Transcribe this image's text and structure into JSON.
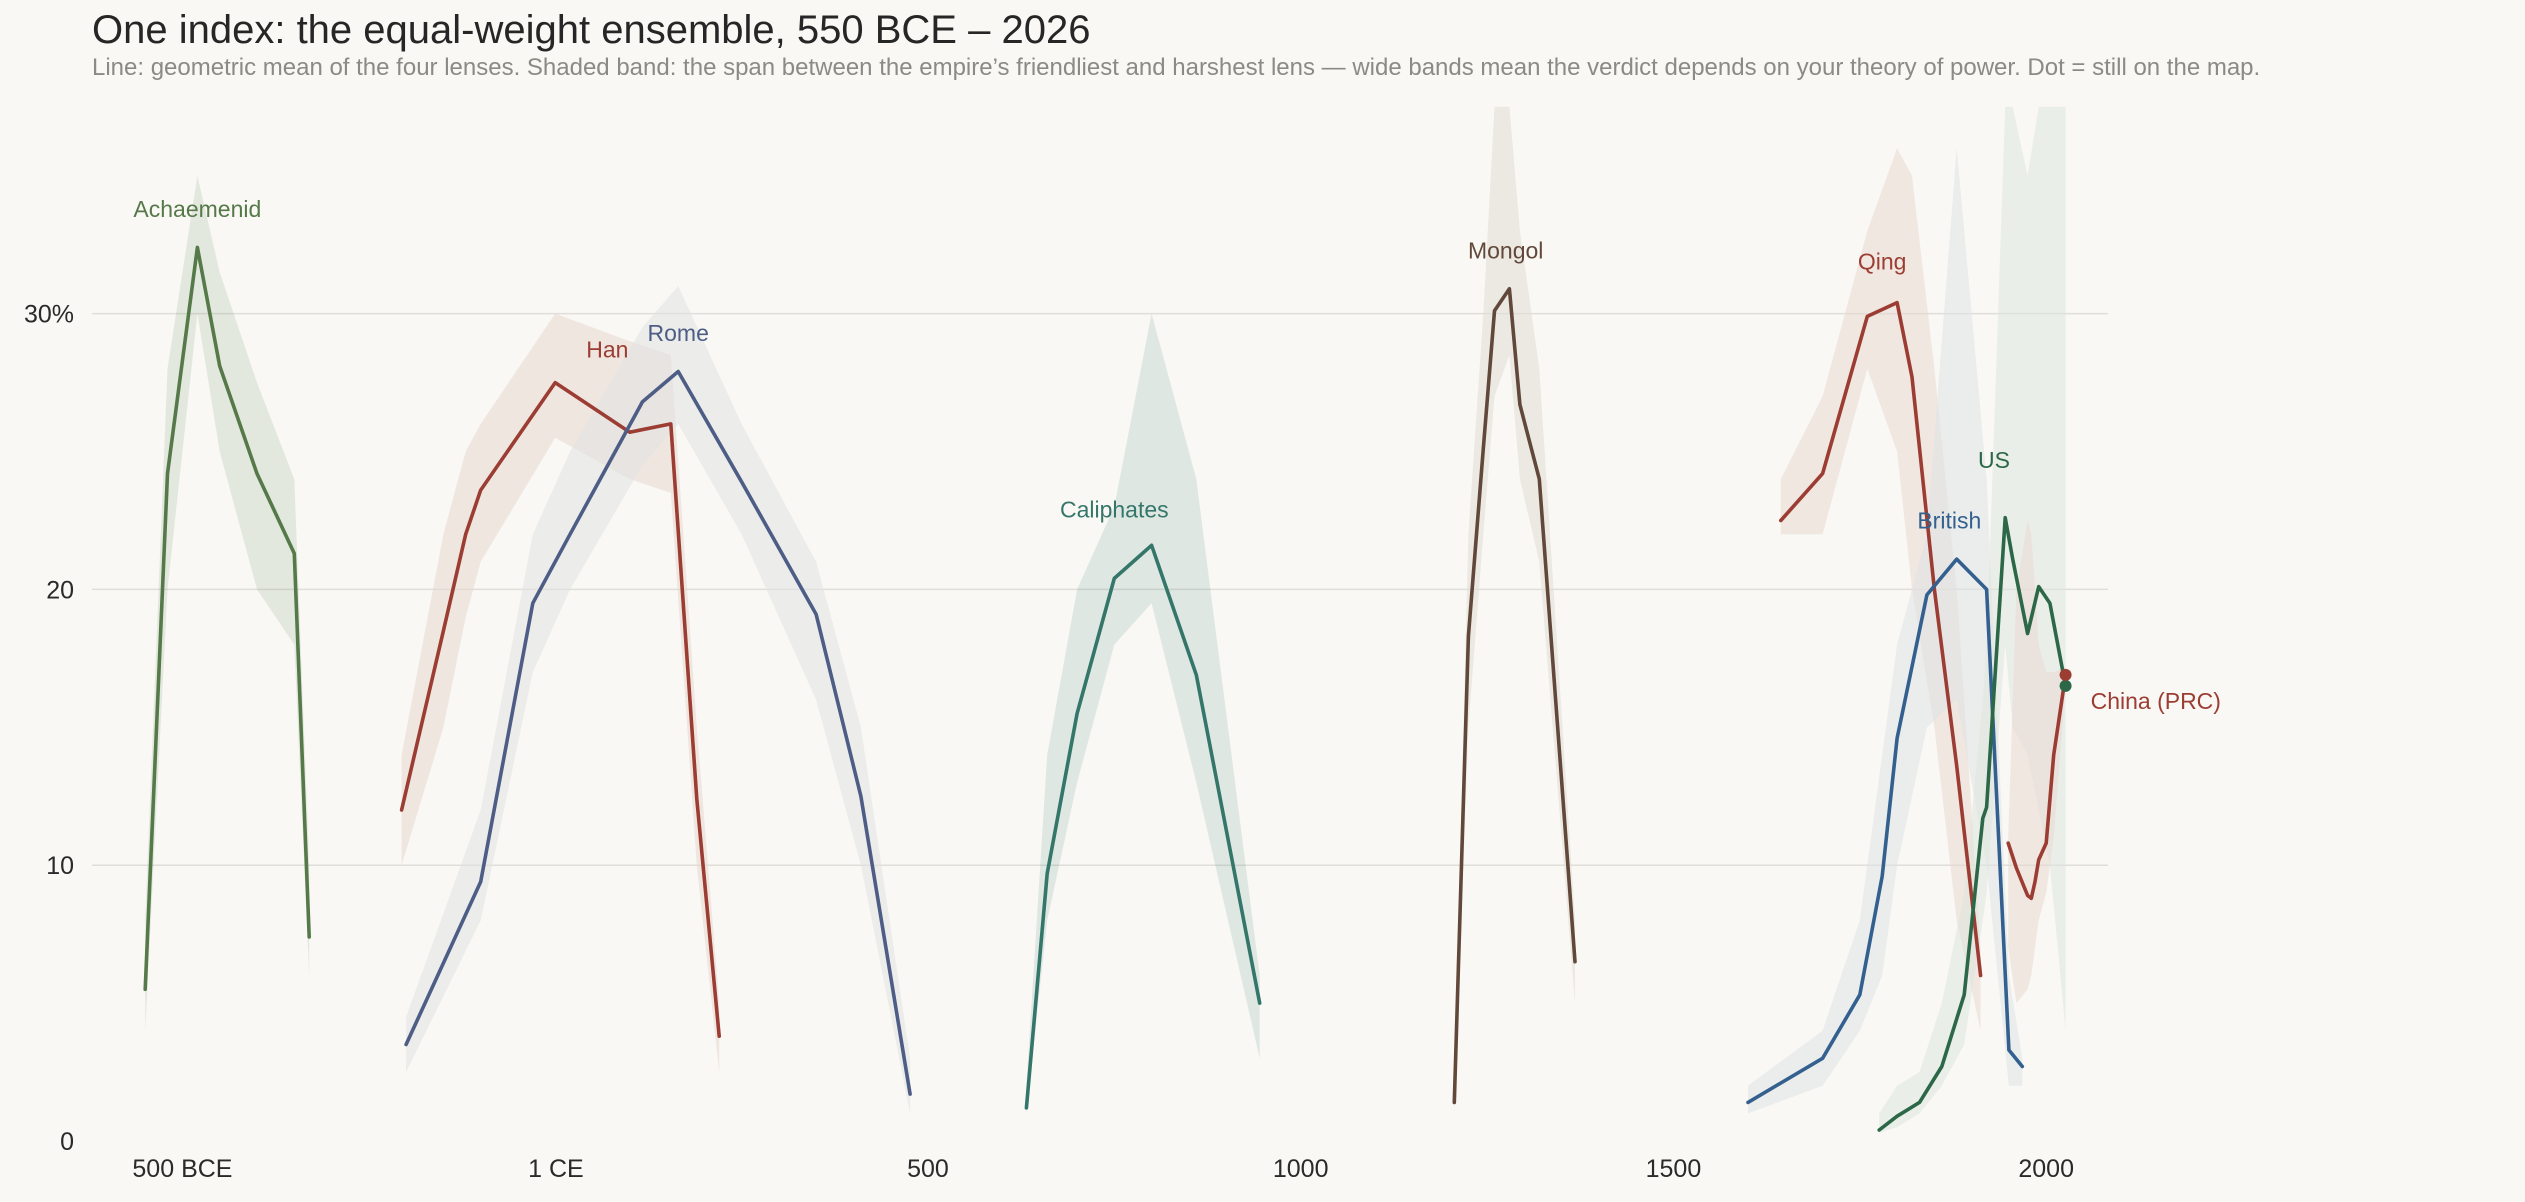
{
  "chart_data": {
    "type": "line",
    "title": "One index: the equal-weight ensemble, 550 BCE – 2026",
    "subtitle": "Line: geometric mean of the four lenses. Shaded band: the span between the empire’s friendliest and harshest lens — wide bands mean the verdict depends on your theory of power. Dot = still on the map.",
    "xlim": [
      -600,
      2070
    ],
    "ylim": [
      0,
      37
    ],
    "x_ticks": [
      {
        "value": -500,
        "label": "500 BCE"
      },
      {
        "value": 1,
        "label": "1 CE"
      },
      {
        "value": 500,
        "label": "500"
      },
      {
        "value": 1000,
        "label": "1000"
      },
      {
        "value": 1500,
        "label": "1500"
      },
      {
        "value": 2000,
        "label": "2000"
      }
    ],
    "y_ticks": [
      {
        "value": 0,
        "label": "0"
      },
      {
        "value": 10,
        "label": "10"
      },
      {
        "value": 20,
        "label": "20"
      },
      {
        "value": 30,
        "label": "30%"
      }
    ],
    "grid": "horizontal",
    "series": [
      {
        "name": "Achaemenid",
        "color": "#56794a",
        "label_at": {
          "x": -480,
          "y": 33.5
        },
        "end_label": false,
        "still_on_map": false,
        "x": [
          -550,
          -520,
          -480,
          -450,
          -400,
          -350,
          -330
        ],
        "y": [
          5.5,
          24.2,
          32.4,
          28.1,
          24.2,
          21.3,
          7.4
        ],
        "upper": [
          8,
          28,
          35,
          31.5,
          27.5,
          24,
          10
        ],
        "lower": [
          4,
          20,
          30,
          25,
          20,
          18,
          6
        ]
      },
      {
        "name": "Han",
        "color": "#9c3d33",
        "label_at": {
          "x": 70,
          "y": 28.4
        },
        "end_label": false,
        "still_on_map": false,
        "x": [
          -206,
          -150,
          -120,
          -100,
          0,
          100,
          155,
          190,
          220
        ],
        "y": [
          12.0,
          18.5,
          22.0,
          23.6,
          27.5,
          25.7,
          26.0,
          12.4,
          3.8
        ],
        "upper": [
          14,
          22,
          25,
          26,
          30,
          29,
          28.5,
          15,
          5
        ],
        "lower": [
          10,
          15,
          19,
          21,
          25.5,
          24,
          23.5,
          10,
          2.5
        ],
        "band_color": "#e8d7cf"
      },
      {
        "name": "Rome",
        "color": "#4d5d85",
        "label_at": {
          "x": 165,
          "y": 29.0
        },
        "end_label": false,
        "still_on_map": false,
        "x": [
          -200,
          -100,
          -30,
          20,
          117,
          165,
          250,
          350,
          410,
          476
        ],
        "y": [
          3.5,
          9.4,
          19.5,
          22.0,
          26.8,
          27.9,
          23.9,
          19.1,
          12.5,
          1.7
        ],
        "upper": [
          4.5,
          12,
          22,
          25,
          29.5,
          31,
          26,
          21,
          15,
          3
        ],
        "lower": [
          2.5,
          8,
          17,
          20,
          24.5,
          26,
          22,
          16,
          10,
          1
        ],
        "band_color": "#e1e2e2"
      },
      {
        "name": "Caliphates",
        "color": "#35766a",
        "label_at": {
          "x": 750,
          "y": 22.6
        },
        "end_label": false,
        "still_on_map": false,
        "x": [
          632,
          660,
          700,
          750,
          800,
          860,
          945
        ],
        "y": [
          1.2,
          9.7,
          15.5,
          20.4,
          21.6,
          16.9,
          5.0
        ],
        "upper": [
          2,
          14,
          20,
          23,
          30,
          24,
          6
        ],
        "lower": [
          1,
          8,
          13,
          18,
          19.5,
          13,
          3
        ]
      },
      {
        "name": "Mongol",
        "color": "#61483a",
        "label_at": {
          "x": 1275,
          "y": 32.0
        },
        "end_label": false,
        "still_on_map": false,
        "x": [
          1206,
          1225,
          1245,
          1260,
          1280,
          1294,
          1320,
          1368
        ],
        "y": [
          1.4,
          18.3,
          25.1,
          30.1,
          30.9,
          26.7,
          24.0,
          6.5
        ],
        "upper": [
          2,
          22,
          30,
          38,
          38,
          33,
          28,
          8
        ],
        "lower": [
          1,
          15,
          22,
          27,
          28.5,
          24,
          21,
          5
        ],
        "band_color": "#e2ddd6"
      },
      {
        "name": "Qing",
        "color": "#9c3d33",
        "label_at": {
          "x": 1780,
          "y": 31.6
        },
        "end_label": false,
        "still_on_map": false,
        "x": [
          1644,
          1700,
          1760,
          1800,
          1820,
          1850,
          1880,
          1912
        ],
        "y": [
          22.5,
          24.2,
          29.9,
          30.4,
          27.7,
          20.0,
          13.6,
          6.0
        ],
        "upper": [
          24,
          27,
          33,
          36,
          35,
          28,
          20,
          7
        ],
        "lower": [
          22,
          22,
          28,
          25,
          20,
          15,
          8,
          4
        ],
        "band_color": "#ead9d2"
      },
      {
        "name": "British",
        "color": "#34608f",
        "label_at": {
          "x": 1870,
          "y": 22.2
        },
        "end_label": false,
        "still_on_map": false,
        "x": [
          1600,
          1700,
          1750,
          1780,
          1800,
          1840,
          1880,
          1920,
          1950,
          1968
        ],
        "y": [
          1.4,
          3.0,
          5.3,
          9.6,
          14.6,
          19.8,
          21.1,
          20.0,
          3.3,
          2.7
        ],
        "upper": [
          2,
          4,
          8,
          14,
          18,
          22,
          36,
          24,
          6,
          3
        ],
        "lower": [
          1,
          2,
          4,
          6,
          10,
          15,
          16,
          10,
          2,
          2
        ],
        "band_color": "#dfe3e6"
      },
      {
        "name": "US",
        "color": "#2c6848",
        "label_at": {
          "x": 1930,
          "y": 24.4
        },
        "end_label": false,
        "still_on_map": true,
        "x": [
          1776,
          1800,
          1830,
          1860,
          1890,
          1915,
          1920,
          1945,
          1955,
          1975,
          1990,
          2005,
          2026
        ],
        "y": [
          0.4,
          0.9,
          1.4,
          2.7,
          5.3,
          11.7,
          12.1,
          22.6,
          21.1,
          18.4,
          20.1,
          19.5,
          16.5
        ],
        "upper": [
          1,
          2,
          2.5,
          5,
          9,
          16,
          18,
          38,
          38,
          35,
          38,
          38,
          38
        ],
        "lower": [
          0.3,
          0.5,
          1,
          2,
          3.5,
          8,
          9,
          18,
          15,
          14,
          12,
          10,
          4
        ],
        "band_color": "#dfe6df"
      },
      {
        "name": "China (PRC)",
        "color": "#9c3d33",
        "label_at": null,
        "end_label": true,
        "still_on_map": true,
        "x": [
          1949,
          1960,
          1975,
          1980,
          1985,
          1990,
          2000,
          2010,
          2026
        ],
        "y": [
          10.8,
          9.9,
          8.9,
          8.8,
          9.4,
          10.2,
          10.8,
          14.0,
          16.9
        ],
        "upper": [
          11,
          20,
          22.5,
          22,
          20,
          18,
          17,
          17,
          17.2
        ],
        "lower": [
          7,
          5,
          5.5,
          6,
          7,
          8,
          9,
          11,
          16.5
        ],
        "band_color": "#ead9d2"
      }
    ]
  }
}
